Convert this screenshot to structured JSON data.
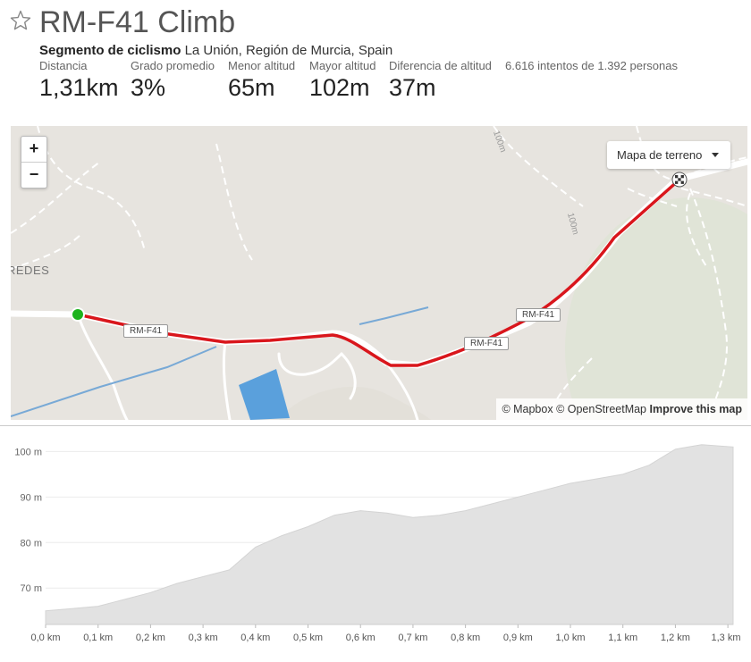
{
  "header": {
    "title": "RM-F41 Climb",
    "segment_type": "Segmento de ciclismo",
    "location": "La Unión, Región de Murcia, Spain",
    "attempts": "6.616 intentos de 1.392 personas"
  },
  "stats": [
    {
      "label": "Distancia",
      "value": "1,31km"
    },
    {
      "label": "Grado promedio",
      "value": "3%"
    },
    {
      "label": "Menor altitud",
      "value": "65m"
    },
    {
      "label": "Mayor altitud",
      "value": "102m"
    },
    {
      "label": "Diferencia de altitud",
      "value": "37m"
    }
  ],
  "map": {
    "zoom_in": "+",
    "zoom_out": "−",
    "map_type": "Mapa de terreno",
    "attribution_mapbox": "© Mapbox",
    "attribution_osm": "© OpenStreetMap",
    "improve": "Improve this map",
    "place_label": "REDES",
    "road_labels": [
      "RM-F41",
      "RM-F41",
      "RM-F41"
    ],
    "contour_labels": [
      "100m",
      "100m"
    ],
    "colors": {
      "route": "#d9161c",
      "start": "#1db31d",
      "water": "#6fa8dc"
    },
    "icons": {
      "start": "start-marker-icon",
      "finish": "checkered-flag-icon",
      "star": "star-icon"
    }
  },
  "chart_data": {
    "type": "area",
    "xlabel": "",
    "ylabel": "",
    "x_unit": "km",
    "y_unit": "m",
    "xlim": [
      0,
      1.31
    ],
    "ylim": [
      62,
      104
    ],
    "xticks": [
      "0,0 km",
      "0,1 km",
      "0,2 km",
      "0,3 km",
      "0,4 km",
      "0,5 km",
      "0,6 km",
      "0,7 km",
      "0,8 km",
      "0,9 km",
      "1,0 km",
      "1,1 km",
      "1,2 km",
      "1,3 km"
    ],
    "yticks": [
      "70 m",
      "80 m",
      "90 m",
      "100 m"
    ],
    "grid": true,
    "fill_color": "#e2e2e2",
    "x": [
      0.0,
      0.05,
      0.1,
      0.15,
      0.2,
      0.25,
      0.3,
      0.35,
      0.4,
      0.45,
      0.5,
      0.55,
      0.6,
      0.65,
      0.7,
      0.75,
      0.8,
      0.85,
      0.9,
      0.95,
      1.0,
      1.05,
      1.1,
      1.15,
      1.2,
      1.25,
      1.31
    ],
    "y": [
      65,
      65.5,
      66,
      67.5,
      69,
      71,
      72.5,
      74,
      79,
      81.5,
      83.5,
      86,
      87,
      86.5,
      85.5,
      86,
      87,
      88.5,
      90,
      91.5,
      93,
      94,
      95,
      97,
      100.5,
      101.5,
      101
    ]
  }
}
